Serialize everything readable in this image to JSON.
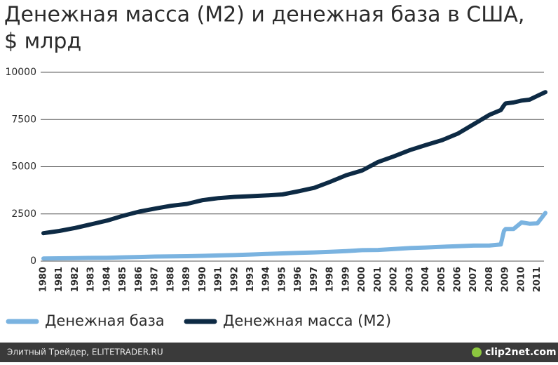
{
  "chart_data": {
    "type": "line",
    "title": [
      "Денежная масса (M2) и денежная база в США,",
      "$ млрд"
    ],
    "x": [
      1980,
      1981,
      1982,
      1983,
      1984,
      1985,
      1986,
      1987,
      1988,
      1989,
      1990,
      1991,
      1992,
      1993,
      1994,
      1995,
      1996,
      1997,
      1998,
      1999,
      2000,
      2001,
      2002,
      2003,
      2004,
      2005,
      2006,
      2007,
      2008,
      2008.7,
      2008.9,
      2009,
      2009.5,
      2010,
      2010.5,
      2011,
      2011.5
    ],
    "series": [
      {
        "name": "Денежная база",
        "color": "#7ab3e0",
        "values": [
          140,
          150,
          160,
          170,
          180,
          200,
          220,
          240,
          250,
          260,
          280,
          300,
          320,
          350,
          380,
          410,
          440,
          460,
          490,
          530,
          580,
          590,
          640,
          690,
          720,
          760,
          790,
          820,
          830,
          880,
          1600,
          1700,
          1700,
          2050,
          1980,
          2000,
          2550
        ]
      },
      {
        "name": "Денежная масса (M2)",
        "color": "#0d2a44",
        "values": [
          1480,
          1600,
          1760,
          1950,
          2150,
          2400,
          2620,
          2780,
          2930,
          3030,
          3230,
          3340,
          3400,
          3440,
          3480,
          3530,
          3700,
          3880,
          4200,
          4550,
          4800,
          5250,
          5550,
          5880,
          6150,
          6400,
          6750,
          7250,
          7750,
          8000,
          8250,
          8350,
          8400,
          8500,
          8550,
          8750,
          8950
        ]
      }
    ],
    "xlim": [
      1980,
      2011.5
    ],
    "xticks": [
      1980,
      1981,
      1982,
      1983,
      1984,
      1985,
      1986,
      1987,
      1988,
      1989,
      1990,
      1991,
      1992,
      1993,
      1994,
      1995,
      1996,
      1997,
      1998,
      1999,
      2000,
      2001,
      2002,
      2003,
      2004,
      2005,
      2006,
      2007,
      2008,
      2009,
      2010,
      2011
    ],
    "ylim": [
      0,
      10000
    ],
    "yticks": [
      0,
      2500,
      5000,
      7500,
      10000
    ],
    "grid": true
  },
  "footer": {
    "source": "Элитный Трейдер, ELITETRADER.RU",
    "brand": "clip2net.com"
  }
}
